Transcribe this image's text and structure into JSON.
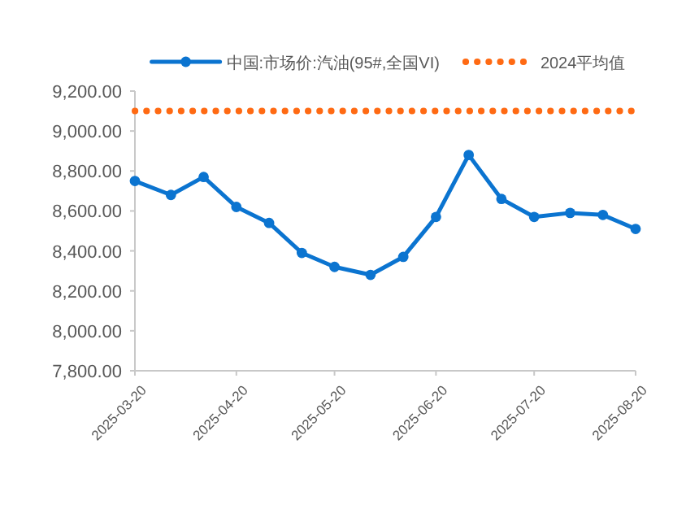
{
  "chart_data": {
    "type": "line",
    "x": [
      "2025-03-20",
      "2025-03-31",
      "2025-04-10",
      "2025-04-20",
      "2025-04-30",
      "2025-05-10",
      "2025-05-20",
      "2025-05-31",
      "2025-06-10",
      "2025-06-20",
      "2025-06-30",
      "2025-07-10",
      "2025-07-20",
      "2025-07-31",
      "2025-08-10",
      "2025-08-20"
    ],
    "series": [
      {
        "name": "中国:市场价:汽油(95#,全国VI)",
        "color": "#0b74d0",
        "marker": "circle",
        "line_style": "solid",
        "values": [
          8750,
          8680,
          8770,
          8620,
          8540,
          8390,
          8320,
          8280,
          8370,
          8570,
          8880,
          8660,
          8570,
          8590,
          8580,
          8510
        ]
      },
      {
        "name": "2024平均值",
        "color": "#ff6a13",
        "marker": "none",
        "line_style": "dotted",
        "values": [
          9100,
          9100,
          9100,
          9100,
          9100,
          9100,
          9100,
          9100,
          9100,
          9100,
          9100,
          9100,
          9100,
          9100,
          9100,
          9100
        ]
      }
    ],
    "xlim": [
      "2025-03-20",
      "2025-08-20"
    ],
    "xticks": [
      "2025-03-20",
      "2025-04-20",
      "2025-05-20",
      "2025-06-20",
      "2025-07-20",
      "2025-08-20"
    ],
    "ylim": [
      7800,
      9200
    ],
    "yticks": [
      {
        "value": 7800,
        "label": "7,800.00"
      },
      {
        "value": 8000,
        "label": "8,000.00"
      },
      {
        "value": 8200,
        "label": "8,200.00"
      },
      {
        "value": 8400,
        "label": "8,400.00"
      },
      {
        "value": 8600,
        "label": "8,600.00"
      },
      {
        "value": 8800,
        "label": "8,800.00"
      },
      {
        "value": 9000,
        "label": "9,000.00"
      },
      {
        "value": 9200,
        "label": "9,200.00"
      }
    ],
    "grid": false,
    "legend": "top"
  }
}
